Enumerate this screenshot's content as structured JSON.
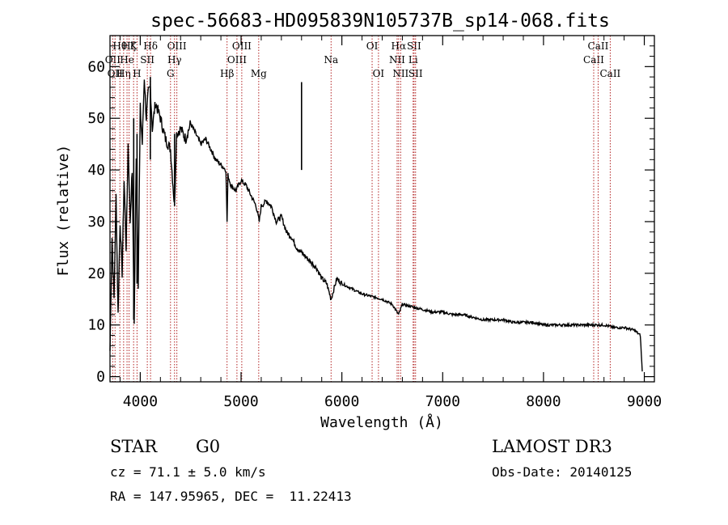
{
  "chart_data": {
    "type": "line",
    "title": "spec-56683-HD095839N105737B_sp14-068.fits",
    "xlabel": "Wavelength (Å)",
    "ylabel": "Flux (relative)",
    "xlim": [
      3700,
      9100
    ],
    "ylim": [
      -1,
      66
    ],
    "xticks": [
      4000,
      5000,
      6000,
      7000,
      8000,
      9000
    ],
    "yticks": [
      0,
      10,
      20,
      30,
      40,
      50,
      60
    ],
    "grid": false,
    "series": [
      {
        "name": "flux",
        "x": [
          3700,
          3720,
          3740,
          3760,
          3780,
          3800,
          3820,
          3840,
          3860,
          3880,
          3900,
          3920,
          3940,
          3960,
          3980,
          4000,
          4020,
          4040,
          4060,
          4080,
          4100,
          4120,
          4150,
          4200,
          4250,
          4300,
          4340,
          4360,
          4400,
          4450,
          4500,
          4550,
          4600,
          4650,
          4700,
          4750,
          4800,
          4850,
          4861,
          4870,
          4900,
          4950,
          5000,
          5050,
          5100,
          5150,
          5180,
          5200,
          5250,
          5300,
          5350,
          5400,
          5450,
          5500,
          5550,
          5600,
          5650,
          5700,
          5750,
          5800,
          5850,
          5893,
          5950,
          6000,
          6100,
          6200,
          6300,
          6400,
          6500,
          6563,
          6600,
          6700,
          6800,
          6900,
          7000,
          7100,
          7200,
          7300,
          7400,
          7500,
          7600,
          7700,
          7800,
          7900,
          8000,
          8100,
          8200,
          8300,
          8400,
          8500,
          8600,
          8700,
          8800,
          8900,
          8960,
          8980
        ],
        "y": [
          5,
          27,
          15,
          35,
          12,
          30,
          20,
          38,
          25,
          45,
          30,
          40,
          10,
          43,
          18,
          52,
          45,
          58,
          50,
          55,
          56,
          48,
          53,
          50,
          46,
          44,
          33,
          47,
          48,
          46,
          49,
          47,
          45,
          46,
          44,
          42,
          41,
          40,
          30,
          39,
          37,
          36,
          38,
          37,
          35,
          33,
          30,
          33,
          34,
          33,
          30,
          31,
          28,
          27,
          25,
          24,
          23,
          22,
          21,
          19,
          18,
          15,
          19,
          18,
          17,
          16,
          15.5,
          15,
          14,
          12,
          14,
          13.5,
          13,
          12.5,
          12.5,
          12,
          12,
          11.5,
          11,
          11,
          11,
          10.5,
          10.5,
          10.5,
          10,
          10,
          10,
          10,
          10,
          10,
          10,
          9.5,
          9.5,
          9,
          8,
          1
        ]
      }
    ],
    "spikes": [
      {
        "x": 3935,
        "y_top": 50,
        "y_bottom": 11
      },
      {
        "x": 3968,
        "y_top": 47,
        "y_bottom": 18
      },
      {
        "x": 4100,
        "y_top": 58,
        "y_bottom": 42
      },
      {
        "x": 4340,
        "y_top": 47,
        "y_bottom": 33
      },
      {
        "x": 5600,
        "y_top": 57,
        "y_bottom": 40
      }
    ],
    "lines": [
      {
        "x": 3727,
        "label": "OII",
        "row": 1
      },
      {
        "x": 3750,
        "label": "OII",
        "row": 2
      },
      {
        "x": 3798,
        "label": "Hθ",
        "row": 0
      },
      {
        "x": 3835,
        "label": "Hη",
        "row": 2
      },
      {
        "x": 3869,
        "label": "He",
        "row": 1
      },
      {
        "x": 3889,
        "label": "Hζ",
        "row": 0
      },
      {
        "x": 3934,
        "label": "K",
        "row": 0
      },
      {
        "x": 3968,
        "label": "H",
        "row": 2
      },
      {
        "x": 4070,
        "label": "SII",
        "row": 1
      },
      {
        "x": 4102,
        "label": "Hδ",
        "row": 0
      },
      {
        "x": 4300,
        "label": "G",
        "row": 2
      },
      {
        "x": 4340,
        "label": "Hγ",
        "row": 1
      },
      {
        "x": 4363,
        "label": "OIII",
        "row": 0
      },
      {
        "x": 4861,
        "label": "Hβ",
        "row": 2
      },
      {
        "x": 4959,
        "label": "OIII",
        "row": 1
      },
      {
        "x": 5007,
        "label": "OIII",
        "row": 0
      },
      {
        "x": 5175,
        "label": "Mg",
        "row": 2
      },
      {
        "x": 5893,
        "label": "Na",
        "row": 1
      },
      {
        "x": 6300,
        "label": "OI",
        "row": 0
      },
      {
        "x": 6363,
        "label": "OI",
        "row": 2
      },
      {
        "x": 6548,
        "label": "NII",
        "row": 1
      },
      {
        "x": 6563,
        "label": "Hα",
        "row": 0
      },
      {
        "x": 6583,
        "label": "NII",
        "row": 2
      },
      {
        "x": 6707,
        "label": "Li",
        "row": 1
      },
      {
        "x": 6716,
        "label": "SII",
        "row": 0
      },
      {
        "x": 6731,
        "label": "SII",
        "row": 2
      },
      {
        "x": 8498,
        "label": "CaII",
        "row": 1
      },
      {
        "x": 8542,
        "label": "CaII",
        "row": 0
      },
      {
        "x": 8662,
        "label": "CaII",
        "row": 2
      }
    ]
  },
  "info": {
    "object_class": "STAR",
    "subclass": "G0",
    "survey": "LAMOST DR3",
    "cz": "cz = 71.1 ± 5.0 km/s",
    "obs_date": "Obs-Date: 20140125",
    "coords": "RA = 147.95965, DEC =  11.22413"
  },
  "colors": {
    "line_marker": "#b22222",
    "spectrum": "#000000"
  }
}
